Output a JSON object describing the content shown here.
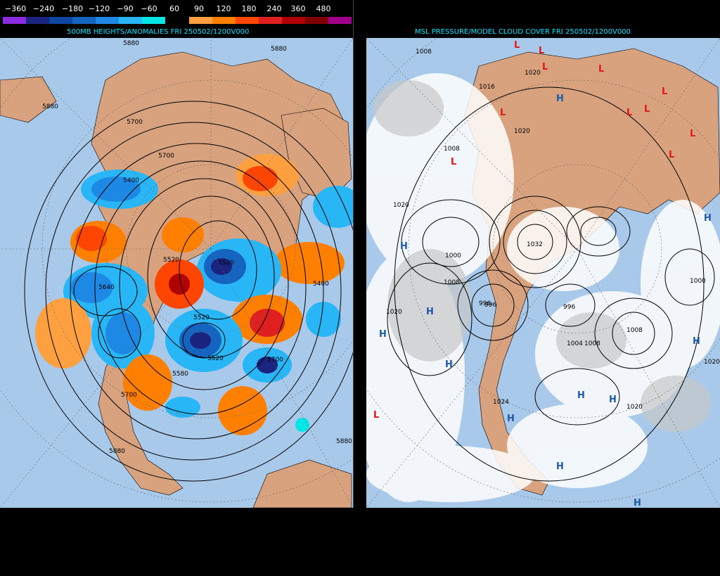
{
  "legend": {
    "labels": [
      "−360",
      "−240",
      "−180",
      "−120",
      "−90",
      "−60",
      "60",
      "90",
      "120",
      "180",
      "240",
      "360",
      "480"
    ],
    "colors": [
      "#8a2be2",
      "#1a237e",
      "#0d47a1",
      "#1565c0",
      "#1e88e5",
      "#29b6f6",
      "#00e5e5",
      "#000000",
      "#ffa040",
      "#ff7f00",
      "#ff4500",
      "#e02020",
      "#b00000",
      "#800000",
      "#a0008a"
    ]
  },
  "left_panel": {
    "title": "500MB HEIGHTS/ANOMALIES FRI 250502/1200V000",
    "contour_labels": [
      "5880",
      "5700",
      "5880",
      "5880",
      "5700",
      "5400",
      "5520",
      "5520",
      "5400",
      "5640",
      "5520",
      "5520",
      "5580",
      "5700",
      "5700",
      "5880",
      "5880"
    ]
  },
  "right_panel": {
    "title": "MSL PRESSURE/MODEL CLOUD COVER FRI 250502/1200V000",
    "isobar_labels": [
      "1008",
      "1016",
      "1020",
      "1008",
      "1020",
      "1000",
      "1032",
      "996",
      "1008",
      "996",
      "1004",
      "1008",
      "1020",
      "1020",
      "1020",
      "1000",
      "1008",
      "1020",
      "1024",
      "996"
    ],
    "symbols": {
      "high": "H",
      "low": "L"
    },
    "colors": {
      "high": "#1e5aa8",
      "low": "#e01818"
    }
  }
}
